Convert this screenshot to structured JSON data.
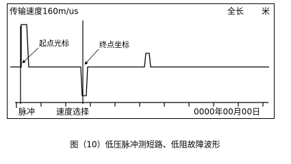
{
  "screen": {
    "speed": "传输速度160m/us",
    "length_label": "全长",
    "unit": "米",
    "start_cursor": "起点光标",
    "end_cursor": "终点坐标",
    "mode": "脉冲",
    "speed_select": "速度选择",
    "date": "0000年00月00日"
  },
  "caption": "图（10）低压脉冲测短路、低阻故障波形"
}
